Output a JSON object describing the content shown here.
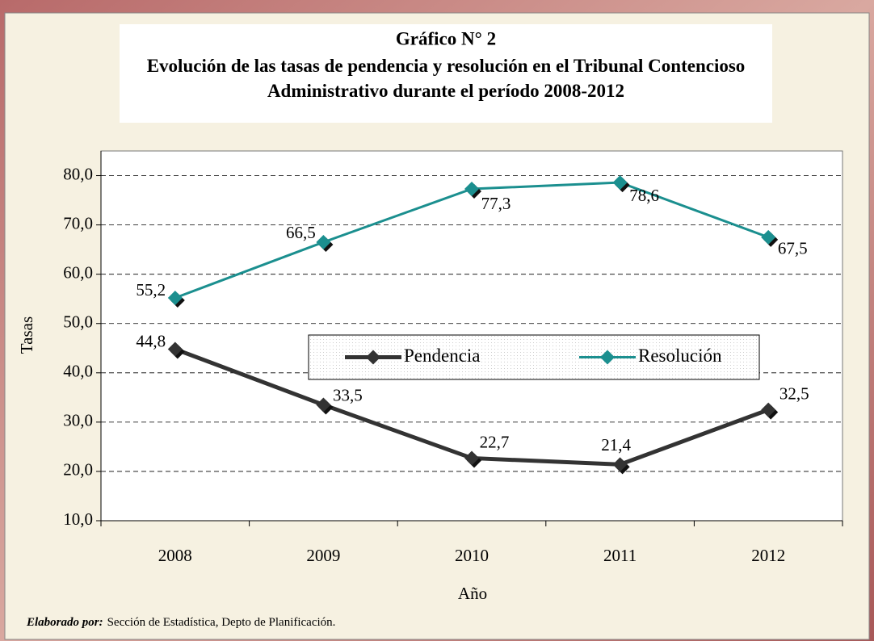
{
  "chart_data": {
    "type": "line",
    "title": "Gráfico N° 2",
    "subtitle": "Evolución de las tasas de pendencia y resolución en el Tribunal Contencioso Administrativo durante el período 2008-2012",
    "x_label": "Año",
    "y_label": "Tasas",
    "categories": [
      "2008",
      "2009",
      "2010",
      "2011",
      "2012"
    ],
    "series": [
      {
        "name": "Pendencia",
        "color": "#333333",
        "values": [
          44.8,
          33.5,
          22.7,
          21.4,
          32.5
        ],
        "value_labels": [
          "44,8",
          "33,5",
          "22,7",
          "21,4",
          "32,5"
        ]
      },
      {
        "name": "Resolución",
        "color": "#1b8f8f",
        "values": [
          55.2,
          66.5,
          77.3,
          78.6,
          67.5
        ],
        "value_labels": [
          "55,2",
          "66,5",
          "77,3",
          "78,6",
          "67,5"
        ]
      }
    ],
    "ylim": [
      10,
      85
    ],
    "yticks": [
      {
        "value": 10,
        "label": "10,0"
      },
      {
        "value": 20,
        "label": "20,0"
      },
      {
        "value": 30,
        "label": "30,0"
      },
      {
        "value": 40,
        "label": "40,0"
      },
      {
        "value": 50,
        "label": "50,0"
      },
      {
        "value": 60,
        "label": "60,0"
      },
      {
        "value": 70,
        "label": "70,0"
      },
      {
        "value": 80,
        "label": "80,0"
      }
    ],
    "grid": true,
    "legend": "center",
    "source": {
      "label": "Elaborado por:",
      "text": "Sección de Estadística, Depto de Planificación."
    }
  }
}
